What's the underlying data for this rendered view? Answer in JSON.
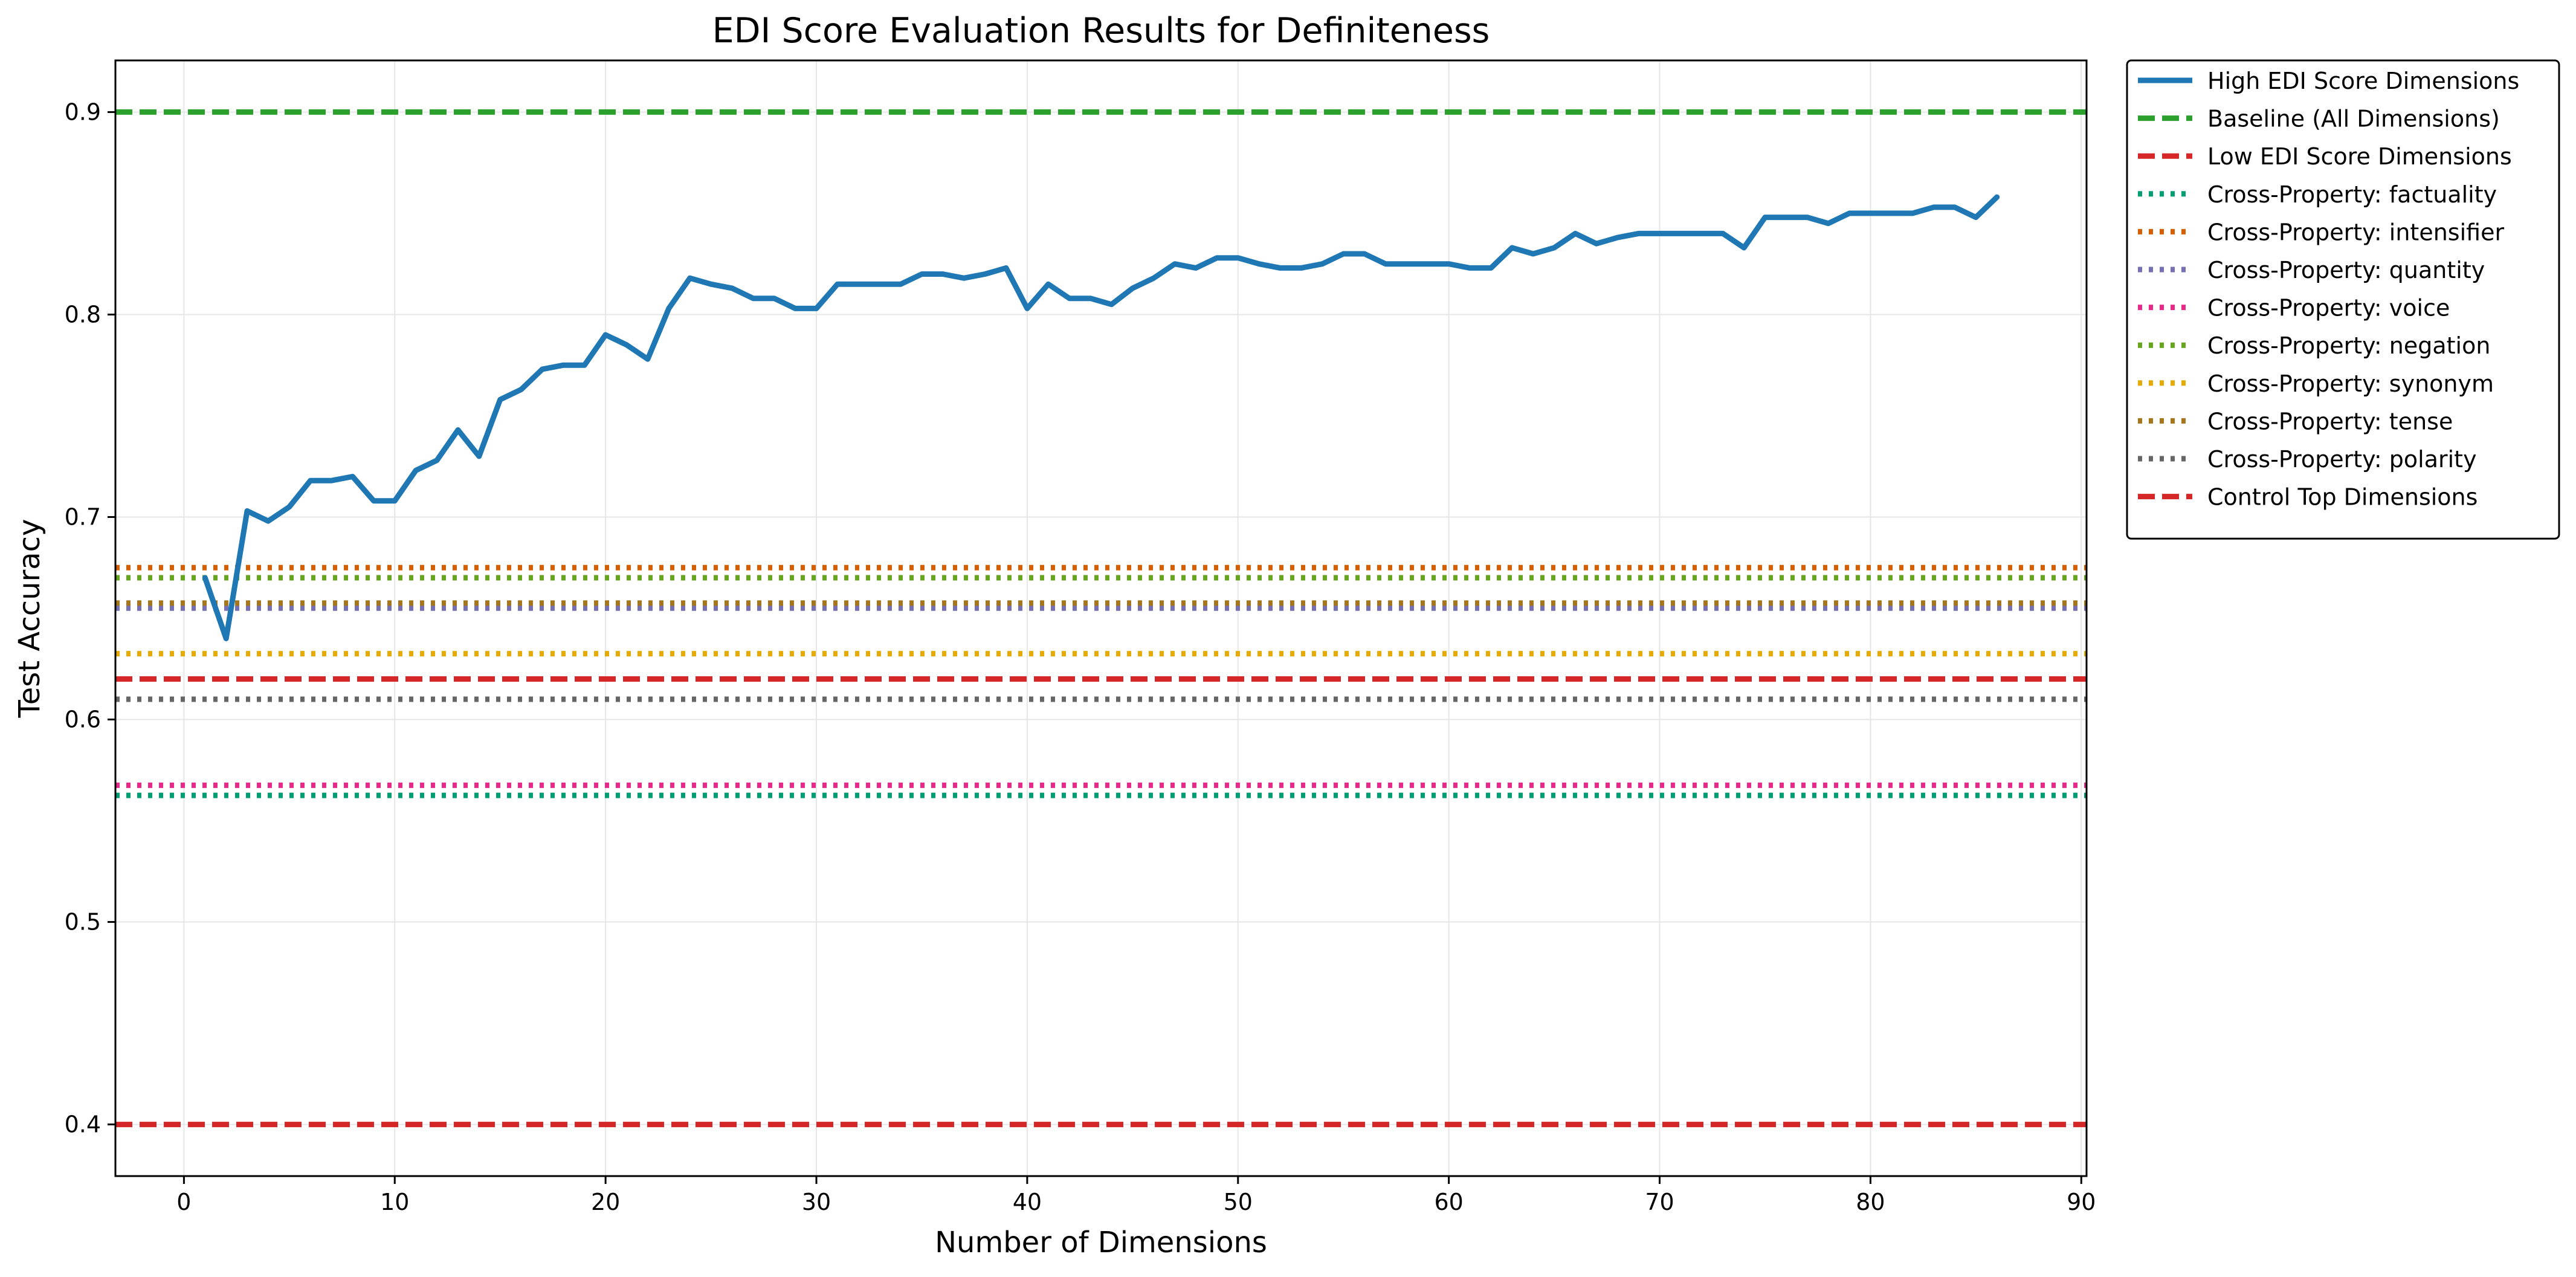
{
  "chart_data": {
    "type": "line",
    "title": "EDI Score Evaluation Results for Definiteness",
    "xlabel": "Number of Dimensions",
    "ylabel": "Test Accuracy",
    "xlim": [
      -3.25,
      90.25
    ],
    "ylim": [
      0.3745,
      0.9255
    ],
    "xticks": [
      0,
      10,
      20,
      30,
      40,
      50,
      60,
      70,
      80,
      90
    ],
    "yticks": [
      0.4,
      0.5,
      0.6,
      0.7,
      0.8,
      0.9
    ],
    "grid": true,
    "legend_position": "outside-right-top",
    "series": [
      {
        "name": "High EDI Score Dimensions",
        "style": "solid",
        "color": "#1f77b4",
        "x": [
          1,
          2,
          3,
          4,
          5,
          6,
          7,
          8,
          9,
          10,
          11,
          12,
          13,
          14,
          15,
          16,
          17,
          18,
          19,
          20,
          21,
          22,
          23,
          24,
          25,
          26,
          27,
          28,
          29,
          30,
          31,
          32,
          33,
          34,
          35,
          36,
          37,
          38,
          39,
          40,
          41,
          42,
          43,
          44,
          45,
          46,
          47,
          48,
          49,
          50,
          51,
          52,
          53,
          54,
          55,
          56,
          57,
          58,
          59,
          60,
          61,
          62,
          63,
          64,
          65,
          66,
          67,
          68,
          69,
          70,
          71,
          72,
          73,
          74,
          75,
          76,
          77,
          78,
          79,
          80,
          81,
          82,
          83,
          84,
          85,
          86
        ],
        "y": [
          0.67,
          0.64,
          0.703,
          0.698,
          0.705,
          0.718,
          0.718,
          0.72,
          0.708,
          0.708,
          0.723,
          0.728,
          0.743,
          0.73,
          0.758,
          0.763,
          0.773,
          0.775,
          0.775,
          0.79,
          0.785,
          0.778,
          0.803,
          0.818,
          0.815,
          0.813,
          0.808,
          0.808,
          0.803,
          0.803,
          0.815,
          0.815,
          0.815,
          0.815,
          0.82,
          0.82,
          0.818,
          0.82,
          0.823,
          0.803,
          0.815,
          0.808,
          0.808,
          0.805,
          0.813,
          0.818,
          0.825,
          0.823,
          0.828,
          0.828,
          0.825,
          0.823,
          0.823,
          0.825,
          0.83,
          0.83,
          0.825,
          0.825,
          0.825,
          0.825,
          0.823,
          0.823,
          0.833,
          0.83,
          0.833,
          0.84,
          0.835,
          0.838,
          0.84,
          0.84,
          0.84,
          0.84,
          0.84,
          0.833,
          0.848,
          0.848,
          0.848,
          0.845,
          0.85,
          0.85,
          0.85,
          0.85,
          0.853,
          0.853,
          0.848,
          0.858
        ]
      },
      {
        "name": "Baseline (All Dimensions)",
        "style": "dashed",
        "color": "#2ca02c",
        "y_const": 0.9
      },
      {
        "name": "Low EDI Score Dimensions",
        "style": "dashed",
        "color": "#d62728",
        "y_const": 0.4
      },
      {
        "name": "Cross-Property: factuality",
        "style": "dotted",
        "color": "#009e73",
        "y_const": 0.5625
      },
      {
        "name": "Cross-Property: intensifier",
        "style": "dotted",
        "color": "#d55e00",
        "y_const": 0.675
      },
      {
        "name": "Cross-Property: quantity",
        "style": "dotted",
        "color": "#7570b3",
        "y_const": 0.655
      },
      {
        "name": "Cross-Property: voice",
        "style": "dotted",
        "color": "#e7298a",
        "y_const": 0.5675
      },
      {
        "name": "Cross-Property: negation",
        "style": "dotted",
        "color": "#66a61e",
        "y_const": 0.67
      },
      {
        "name": "Cross-Property: synonym",
        "style": "dotted",
        "color": "#e6ab02",
        "y_const": 0.6325
      },
      {
        "name": "Cross-Property: tense",
        "style": "dotted",
        "color": "#a6761d",
        "y_const": 0.6575
      },
      {
        "name": "Cross-Property: polarity",
        "style": "dotted",
        "color": "#666666",
        "y_const": 0.61
      },
      {
        "name": "Control Top Dimensions",
        "style": "dashed",
        "color": "#d62728",
        "y_const": 0.62
      }
    ]
  }
}
